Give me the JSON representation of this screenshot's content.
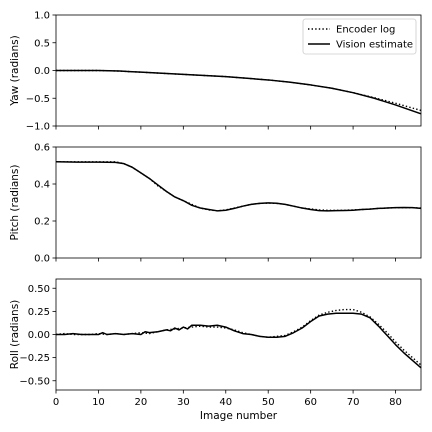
{
  "chart_data": [
    {
      "type": "line",
      "ylabel": "Yaw (radians)",
      "xlabel": "",
      "xlim": [
        0,
        86
      ],
      "ylim": [
        -1.0,
        1.0
      ],
      "yticks": [
        -1.0,
        -0.5,
        0.0,
        0.5,
        1.0
      ],
      "ytick_labels": [
        "−1.0",
        "−0.5",
        "0.0",
        "0.5",
        "1.0"
      ],
      "xticks": [
        0,
        10,
        20,
        30,
        40,
        50,
        60,
        70,
        80
      ],
      "xtick_labels_shown": false,
      "legend": {
        "placement": "top-right",
        "entries": [
          "Encoder log",
          "Vision estimate"
        ]
      },
      "series": [
        {
          "name": "Encoder log",
          "style": "dotted",
          "x": [
            0,
            5,
            10,
            15,
            20,
            25,
            30,
            35,
            40,
            45,
            50,
            55,
            60,
            65,
            70,
            75,
            80,
            86
          ],
          "y": [
            0.0,
            0.0,
            0.0,
            -0.01,
            -0.03,
            -0.05,
            -0.07,
            -0.09,
            -0.11,
            -0.14,
            -0.17,
            -0.21,
            -0.26,
            -0.32,
            -0.4,
            -0.49,
            -0.59,
            -0.72
          ]
        },
        {
          "name": "Vision estimate",
          "style": "solid",
          "x": [
            0,
            5,
            10,
            15,
            20,
            25,
            30,
            35,
            40,
            45,
            50,
            55,
            60,
            65,
            70,
            75,
            80,
            86
          ],
          "y": [
            0.0,
            0.0,
            0.0,
            -0.01,
            -0.03,
            -0.05,
            -0.07,
            -0.09,
            -0.11,
            -0.14,
            -0.17,
            -0.21,
            -0.26,
            -0.32,
            -0.4,
            -0.5,
            -0.62,
            -0.78
          ]
        }
      ]
    },
    {
      "type": "line",
      "ylabel": "Pitch (radians)",
      "xlabel": "",
      "xlim": [
        0,
        86
      ],
      "ylim": [
        0.0,
        0.6
      ],
      "yticks": [
        0.0,
        0.2,
        0.4,
        0.6
      ],
      "ytick_labels": [
        "0.0",
        "0.2",
        "0.4",
        "0.6"
      ],
      "xticks": [
        0,
        10,
        20,
        30,
        40,
        50,
        60,
        70,
        80
      ],
      "xtick_labels_shown": false,
      "series": [
        {
          "name": "Encoder log",
          "style": "dotted",
          "x": [
            0,
            5,
            10,
            14,
            16,
            18,
            20,
            22,
            24,
            26,
            28,
            30,
            32,
            34,
            36,
            38,
            40,
            42,
            44,
            46,
            48,
            50,
            52,
            54,
            56,
            58,
            60,
            62,
            64,
            66,
            68,
            70,
            72,
            74,
            76,
            78,
            80,
            82,
            84,
            86
          ],
          "y": [
            0.52,
            0.52,
            0.52,
            0.52,
            0.51,
            0.49,
            0.46,
            0.43,
            0.39,
            0.36,
            0.33,
            0.31,
            0.29,
            0.27,
            0.26,
            0.255,
            0.26,
            0.27,
            0.28,
            0.29,
            0.295,
            0.297,
            0.295,
            0.29,
            0.28,
            0.27,
            0.265,
            0.26,
            0.258,
            0.258,
            0.258,
            0.26,
            0.262,
            0.265,
            0.268,
            0.27,
            0.272,
            0.272,
            0.272,
            0.27
          ]
        },
        {
          "name": "Vision estimate",
          "style": "solid",
          "x": [
            0,
            5,
            10,
            14,
            16,
            18,
            20,
            22,
            24,
            26,
            28,
            30,
            32,
            34,
            36,
            38,
            40,
            42,
            44,
            46,
            48,
            50,
            52,
            54,
            56,
            58,
            60,
            62,
            64,
            66,
            68,
            70,
            72,
            74,
            76,
            78,
            80,
            82,
            84,
            86
          ],
          "y": [
            0.52,
            0.518,
            0.518,
            0.517,
            0.51,
            0.49,
            0.46,
            0.43,
            0.395,
            0.36,
            0.33,
            0.31,
            0.285,
            0.27,
            0.262,
            0.255,
            0.258,
            0.268,
            0.28,
            0.29,
            0.295,
            0.298,
            0.296,
            0.29,
            0.28,
            0.27,
            0.262,
            0.256,
            0.255,
            0.256,
            0.257,
            0.258,
            0.262,
            0.264,
            0.268,
            0.27,
            0.272,
            0.273,
            0.272,
            0.268
          ]
        }
      ]
    },
    {
      "type": "line",
      "ylabel": "Roll (radians)",
      "xlabel": "Image number",
      "xlim": [
        0,
        86
      ],
      "ylim": [
        -0.6,
        0.6
      ],
      "yticks": [
        -0.5,
        -0.25,
        0.0,
        0.25,
        0.5
      ],
      "ytick_labels": [
        "−0.50",
        "−0.25",
        "0.00",
        "0.25",
        "0.50"
      ],
      "xticks": [
        0,
        10,
        20,
        30,
        40,
        50,
        60,
        70,
        80
      ],
      "xtick_labels": [
        "0",
        "10",
        "20",
        "30",
        "40",
        "50",
        "60",
        "70",
        "80"
      ],
      "xtick_labels_shown": true,
      "series": [
        {
          "name": "Encoder log",
          "style": "dotted",
          "x": [
            0,
            2,
            4,
            6,
            8,
            10,
            12,
            14,
            16,
            18,
            20,
            22,
            24,
            26,
            28,
            30,
            32,
            34,
            36,
            38,
            40,
            42,
            44,
            46,
            48,
            50,
            52,
            54,
            56,
            58,
            60,
            62,
            64,
            66,
            68,
            70,
            72,
            74,
            76,
            78,
            80,
            82,
            84,
            86
          ],
          "y": [
            0.0,
            0.01,
            0.0,
            0.0,
            0.0,
            0.01,
            0.0,
            0.01,
            0.0,
            0.01,
            0.02,
            0.01,
            0.03,
            0.05,
            0.06,
            0.07,
            0.08,
            0.09,
            0.08,
            0.08,
            0.07,
            0.05,
            0.02,
            0.0,
            -0.02,
            -0.03,
            -0.02,
            -0.01,
            0.03,
            0.08,
            0.15,
            0.21,
            0.24,
            0.26,
            0.27,
            0.27,
            0.24,
            0.19,
            0.11,
            0.02,
            -0.08,
            -0.17,
            -0.25,
            -0.33
          ]
        },
        {
          "name": "Vision estimate",
          "style": "solid",
          "x": [
            0,
            2,
            4,
            6,
            8,
            10,
            11,
            12,
            14,
            16,
            18,
            20,
            21,
            22,
            24,
            26,
            27,
            28,
            29,
            30,
            31,
            32,
            34,
            36,
            38,
            40,
            42,
            44,
            46,
            48,
            50,
            52,
            54,
            56,
            58,
            60,
            62,
            64,
            66,
            68,
            70,
            72,
            74,
            76,
            78,
            80,
            82,
            84,
            86
          ],
          "y": [
            0.0,
            0.0,
            0.01,
            0.0,
            0.0,
            0.0,
            0.02,
            0.0,
            0.01,
            0.0,
            0.01,
            0.0,
            0.03,
            0.02,
            0.03,
            0.05,
            0.04,
            0.07,
            0.05,
            0.08,
            0.06,
            0.1,
            0.1,
            0.09,
            0.1,
            0.08,
            0.04,
            0.01,
            0.0,
            -0.02,
            -0.03,
            -0.03,
            -0.02,
            0.02,
            0.07,
            0.14,
            0.2,
            0.22,
            0.23,
            0.23,
            0.23,
            0.22,
            0.18,
            0.09,
            -0.01,
            -0.11,
            -0.2,
            -0.28,
            -0.36
          ]
        }
      ]
    }
  ]
}
